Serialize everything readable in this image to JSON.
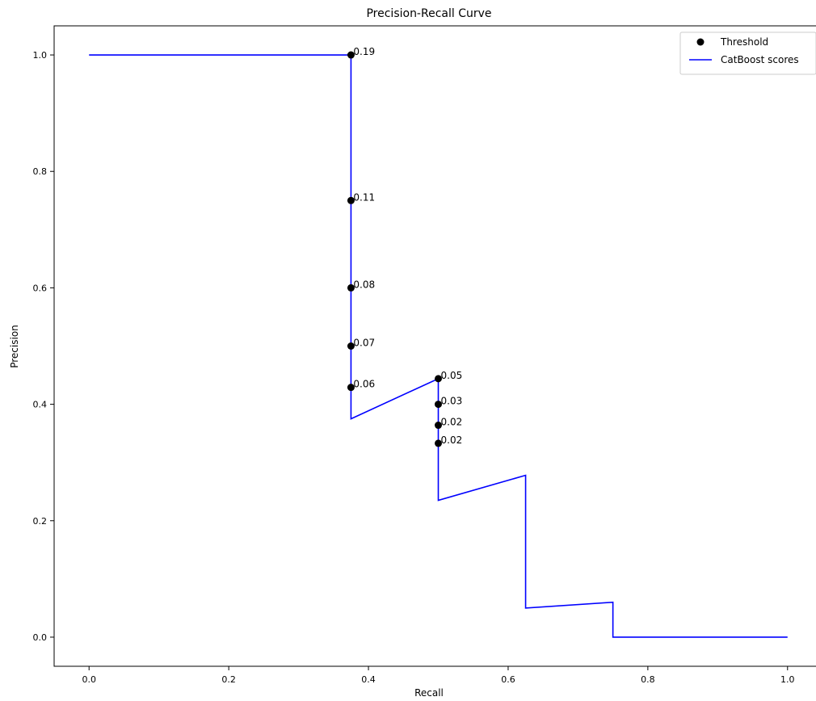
{
  "chart_data": {
    "type": "line",
    "title": "Precision-Recall Curve",
    "xlabel": "Recall",
    "ylabel": "Precision",
    "xlim": [
      -0.05,
      1.05
    ],
    "ylim": [
      -0.05,
      1.05
    ],
    "xticks": [
      "0.0",
      "0.2",
      "0.4",
      "0.6",
      "0.8",
      "1.0"
    ],
    "yticks": [
      "0.0",
      "0.2",
      "0.4",
      "0.6",
      "0.8",
      "1.0"
    ],
    "grid": false,
    "legend_position": "top-right",
    "series": [
      {
        "name": "CatBoost scores",
        "color": "#0000ff",
        "x": [
          0.0,
          0.375,
          0.375,
          0.375,
          0.5,
          0.5,
          0.625,
          0.625,
          0.75,
          0.75,
          1.0
        ],
        "y": [
          1.0,
          1.0,
          0.375,
          0.375,
          0.444,
          0.235,
          0.278,
          0.05,
          0.06,
          0.0,
          0.0
        ]
      }
    ],
    "thresholds": {
      "name": "Threshold",
      "color": "#000000",
      "points": [
        {
          "x": 0.375,
          "y": 1.0,
          "label": "0.19"
        },
        {
          "x": 0.375,
          "y": 0.75,
          "label": "0.11"
        },
        {
          "x": 0.375,
          "y": 0.6,
          "label": "0.08"
        },
        {
          "x": 0.375,
          "y": 0.5,
          "label": "0.07"
        },
        {
          "x": 0.375,
          "y": 0.429,
          "label": "0.06"
        },
        {
          "x": 0.5,
          "y": 0.444,
          "label": "0.05"
        },
        {
          "x": 0.5,
          "y": 0.4,
          "label": "0.03"
        },
        {
          "x": 0.5,
          "y": 0.364,
          "label": "0.02"
        },
        {
          "x": 0.5,
          "y": 0.333,
          "label": "0.02"
        }
      ]
    }
  }
}
